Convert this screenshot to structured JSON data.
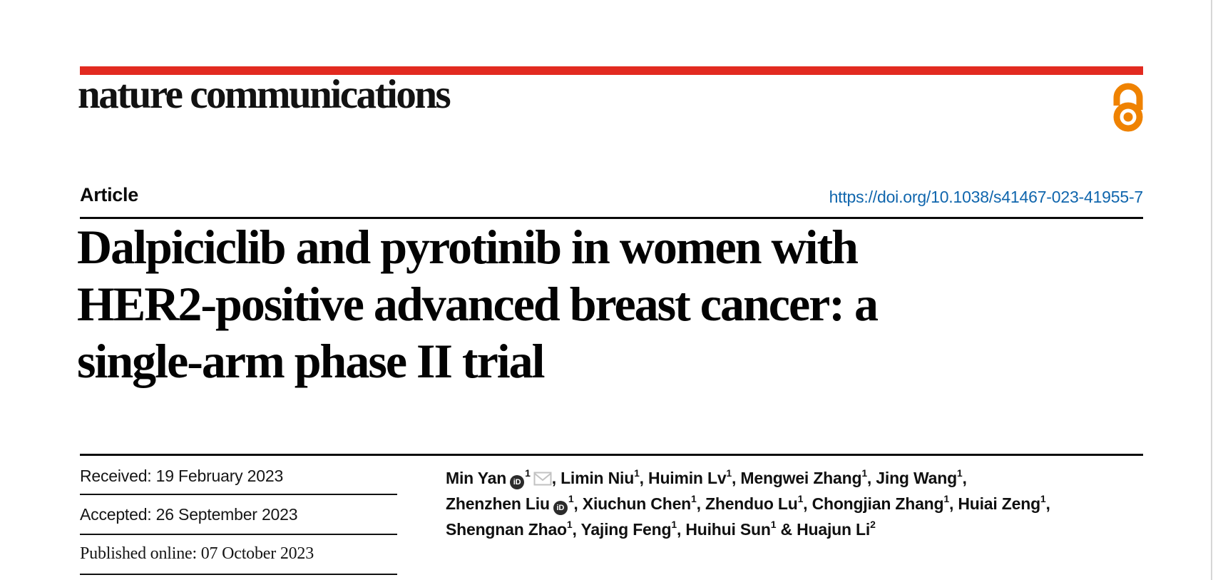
{
  "header": {
    "journal": "nature communications",
    "article_label": "Article",
    "doi": "https://doi.org/10.1038/s41467-023-41955-7"
  },
  "title": {
    "lines": [
      "Dalpiciclib and pyrotinib in women with",
      "HER2-positive advanced breast cancer: a",
      "single-arm phase II trial"
    ]
  },
  "dates": {
    "received": "Received: 19 February 2023",
    "accepted": "Accepted: 26 September 2023",
    "published": "Published online: 07 October 2023"
  },
  "authors": {
    "orcid_label": "iD",
    "lines": [
      [
        {
          "name": "Min Yan",
          "orcid": true,
          "sup": "1",
          "email": true,
          "post": ", "
        },
        {
          "name": "Limin Niu",
          "sup": "1",
          "post": ", "
        },
        {
          "name": "Huimin Lv",
          "sup": "1",
          "post": ", "
        },
        {
          "name": "Mengwei Zhang",
          "sup": "1",
          "post": ", "
        },
        {
          "name": "Jing Wang",
          "sup": "1",
          "post": ","
        }
      ],
      [
        {
          "name": "Zhenzhen Liu",
          "orcid": true,
          "sup": "1",
          "post": ", "
        },
        {
          "name": "Xiuchun Chen",
          "sup": "1",
          "post": ", "
        },
        {
          "name": "Zhenduo Lu",
          "sup": "1",
          "post": ", "
        },
        {
          "name": "Chongjian Zhang",
          "sup": "1",
          "post": ", "
        },
        {
          "name": "Huiai Zeng",
          "sup": "1",
          "post": ","
        }
      ],
      [
        {
          "name": "Shengnan Zhao",
          "sup": "1",
          "post": ", "
        },
        {
          "name": "Yajing Feng",
          "sup": "1",
          "post": ", "
        },
        {
          "name": "Huihui Sun",
          "sup": "1",
          "post": " & "
        },
        {
          "name": "Huajun Li",
          "sup": "2",
          "post": ""
        }
      ]
    ]
  },
  "icons": {
    "open_access_icon": "open-padlock",
    "orcid_icon": "orcid-id-circle",
    "email_icon": "envelope"
  },
  "colors": {
    "brand_red": "#e22a20",
    "oa_orange": "#ef8200",
    "link_blue": "#1066ad"
  }
}
